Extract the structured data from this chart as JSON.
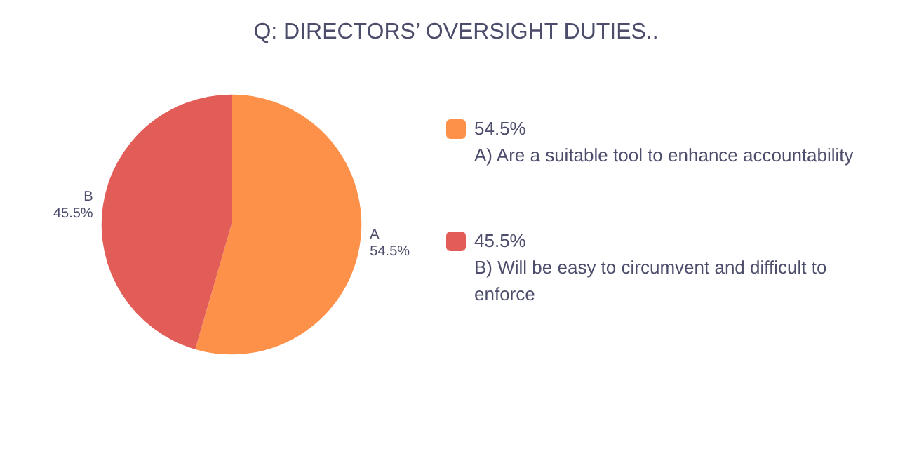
{
  "chart_data": {
    "type": "pie",
    "title": "Q: DIRECTORS’ OVERSIGHT DUTIES..",
    "categories": [
      "A",
      "B"
    ],
    "values": [
      54.5,
      45.5
    ],
    "value_labels": [
      "54.5%",
      "45.5%"
    ],
    "colors": [
      "#fe914a",
      "#e35d58"
    ],
    "annotations": [
      "A) Are a suitable tool to enhance accountability",
      "B) Will be easy to circumvent and difficult to enforce"
    ]
  }
}
